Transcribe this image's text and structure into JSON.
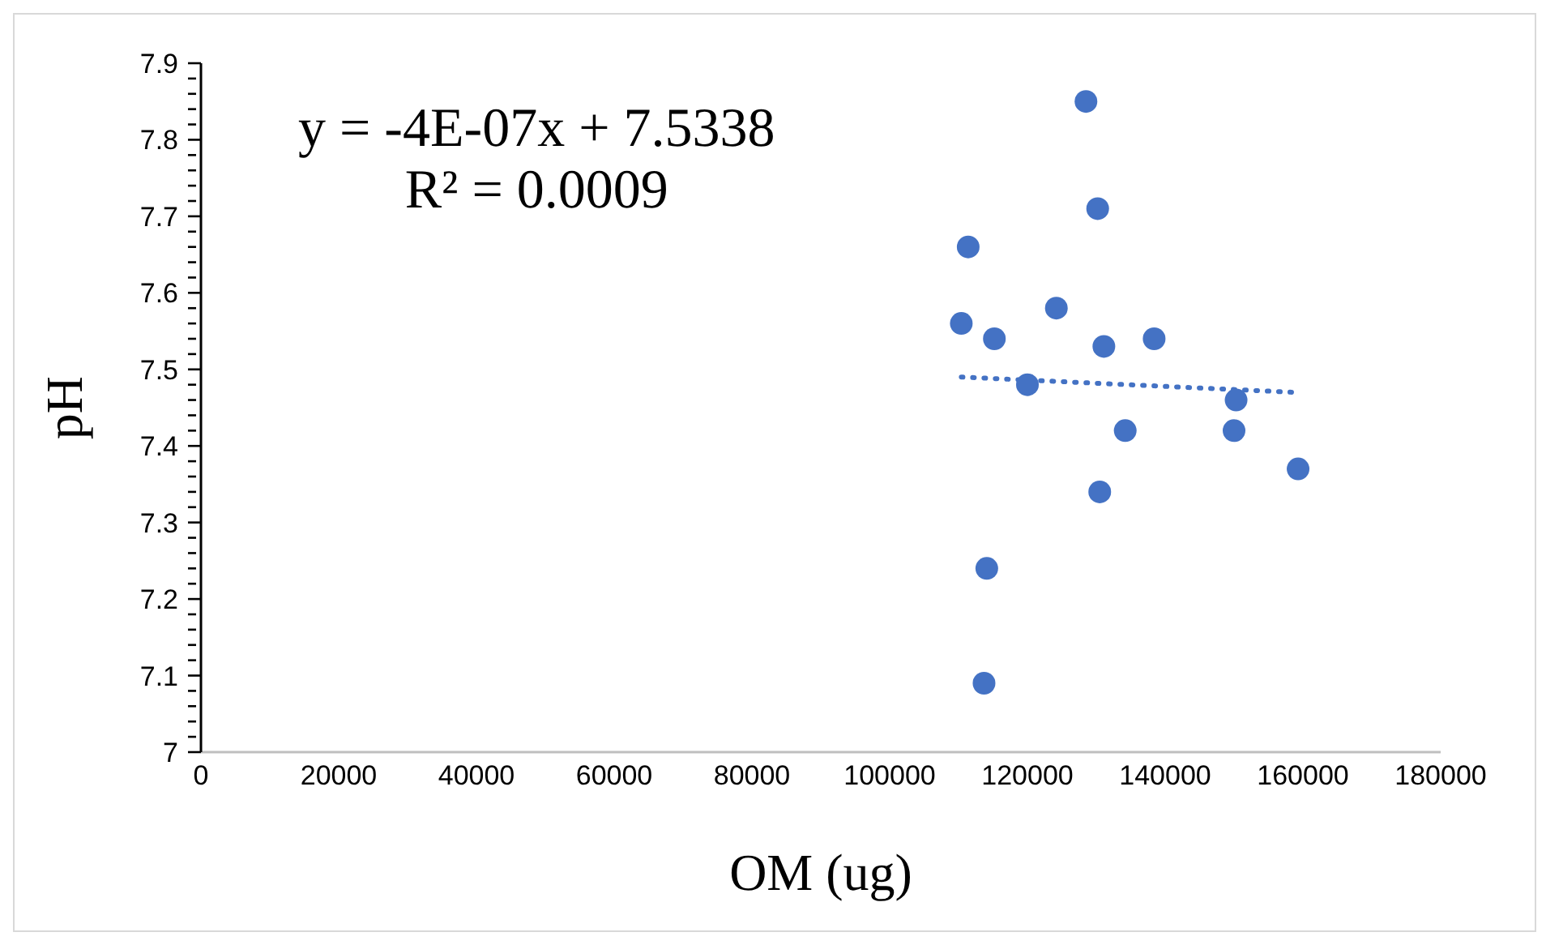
{
  "chart_data": {
    "type": "scatter",
    "xlabel": "OM (ug)",
    "ylabel": "pH",
    "annotations": [
      "y = -4E-07x + 7.5338",
      "R² = 0.0009"
    ],
    "xlim": [
      0,
      180000
    ],
    "xticks": [
      0,
      20000,
      40000,
      60000,
      80000,
      100000,
      120000,
      140000,
      160000,
      180000
    ],
    "ylim": [
      7,
      7.9
    ],
    "yticks": [
      7,
      {
        "value": 7.02,
        "label": null
      },
      {
        "value": 7.04,
        "label": null
      },
      {
        "value": 7.06,
        "label": null
      },
      {
        "value": 7.08,
        "label": null
      },
      7.1,
      {
        "value": 7.12,
        "label": null
      },
      {
        "value": 7.14,
        "label": null
      },
      {
        "value": 7.16,
        "label": null
      },
      {
        "value": 7.18,
        "label": null
      },
      7.2,
      {
        "value": 7.22,
        "label": null
      },
      {
        "value": 7.24,
        "label": null
      },
      {
        "value": 7.26,
        "label": null
      },
      {
        "value": 7.28,
        "label": null
      },
      7.3,
      {
        "value": 7.32,
        "label": null
      },
      {
        "value": 7.34,
        "label": null
      },
      {
        "value": 7.36,
        "label": null
      },
      {
        "value": 7.38,
        "label": null
      },
      7.4,
      {
        "value": 7.42,
        "label": null
      },
      {
        "value": 7.44,
        "label": null
      },
      {
        "value": 7.46,
        "label": null
      },
      {
        "value": 7.48,
        "label": null
      },
      7.5,
      {
        "value": 7.52,
        "label": null
      },
      {
        "value": 7.54,
        "label": null
      },
      {
        "value": 7.56,
        "label": null
      },
      {
        "value": 7.58,
        "label": null
      },
      7.6,
      {
        "value": 7.62,
        "label": null
      },
      {
        "value": 7.64,
        "label": null
      },
      {
        "value": 7.66,
        "label": null
      },
      {
        "value": 7.68,
        "label": null
      },
      7.7,
      {
        "value": 7.72,
        "label": null
      },
      {
        "value": 7.74,
        "label": null
      },
      {
        "value": 7.76,
        "label": null
      },
      {
        "value": 7.78,
        "label": null
      },
      7.8,
      {
        "value": 7.82,
        "label": null
      },
      {
        "value": 7.84,
        "label": null
      },
      {
        "value": 7.86,
        "label": null
      },
      {
        "value": 7.88,
        "label": null
      },
      7.9
    ],
    "marker": "circle",
    "series": [
      {
        "color": "#4472c4",
        "x": [
          128500,
          130200,
          111400,
          124200,
          110400,
          115200,
          131100,
          138400,
          120000,
          150300,
          134200,
          150000,
          159300,
          130500,
          114100,
          113700
        ],
        "values": [
          7.85,
          7.71,
          7.66,
          7.58,
          7.56,
          7.54,
          7.53,
          7.54,
          7.48,
          7.46,
          7.42,
          7.42,
          7.37,
          7.34,
          7.24,
          7.09
        ]
      },
      {
        "type": "line",
        "color": "#4472c4",
        "line_style": "dotted",
        "marker": "none",
        "x": [
          110400,
          158900
        ],
        "values": [
          7.49,
          7.47
        ]
      }
    ]
  }
}
